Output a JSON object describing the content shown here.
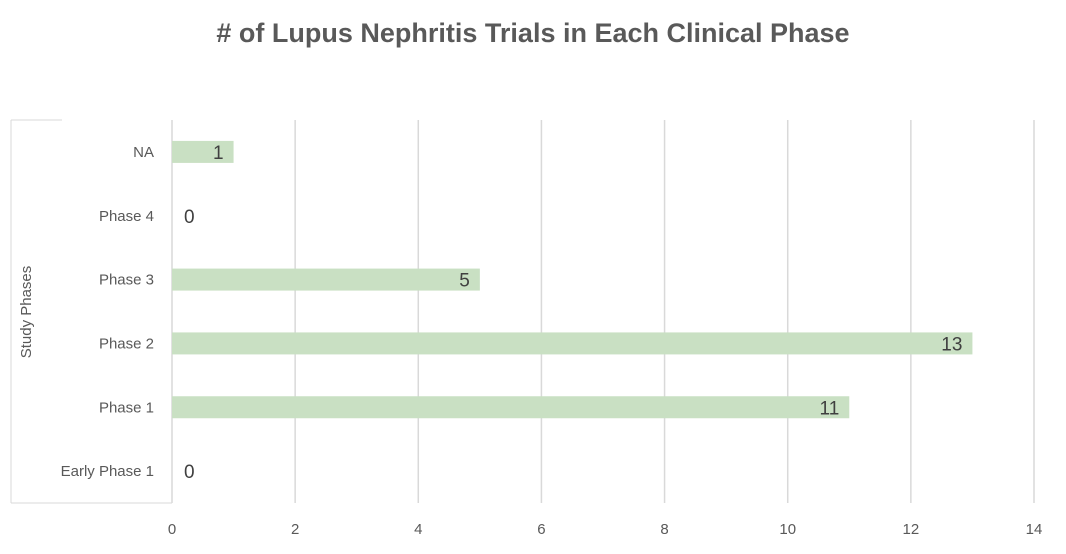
{
  "chart_data": {
    "type": "bar",
    "orientation": "horizontal",
    "title": "# of Lupus  Nephritis Trials in Each Clinical Phase",
    "ylabel": "Study Phases",
    "xlabel": "",
    "categories": [
      "Early Phase 1",
      "Phase 1",
      "Phase 2",
      "Phase 3",
      "Phase 4",
      "NA"
    ],
    "values": [
      0,
      11,
      13,
      5,
      0,
      1
    ],
    "xlim": [
      0,
      14
    ],
    "xticks": [
      0,
      2,
      4,
      6,
      8,
      10,
      12,
      14
    ],
    "grid": true,
    "bar_color": "#c9e0c3",
    "gridline_color": "#d9d9d9"
  }
}
